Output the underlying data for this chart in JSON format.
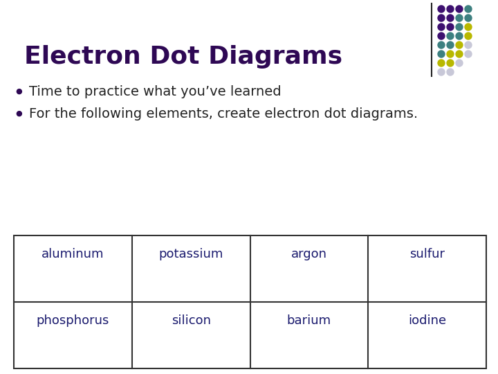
{
  "title": "Electron Dot Diagrams",
  "title_color": "#2E0854",
  "title_fontsize": 26,
  "bullet_points": [
    "Time to practice what you’ve learned",
    "For the following elements, create electron dot diagrams."
  ],
  "bullet_color": "#222222",
  "bullet_fontsize": 14,
  "table_data": [
    [
      "aluminum",
      "potassium",
      "argon",
      "sulfur"
    ],
    [
      "phosphorus",
      "silicon",
      "barium",
      "iodine"
    ]
  ],
  "table_fontsize": 13,
  "table_text_color": "#1a1a6e",
  "bg_color": "#ffffff",
  "dot_colors_purple": "#3d1070",
  "dot_colors_teal": "#3d8080",
  "dot_colors_yellow": "#b8b800",
  "dot_colors_gray": "#c8c8d8",
  "vertical_line_color": "#222222"
}
